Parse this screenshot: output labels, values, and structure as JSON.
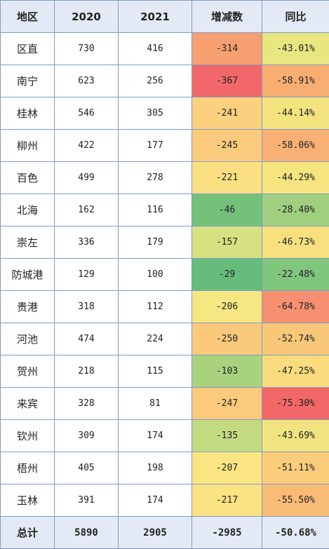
{
  "headers": {
    "region": "地区",
    "y2020": "2020",
    "y2021": "2021",
    "change": "增减数",
    "ratio": "同比"
  },
  "rows": [
    {
      "region": "区直",
      "y2020": "730",
      "y2021": "416",
      "change": "-314",
      "ratio": "-43.01%",
      "change_color": "#f6a071",
      "ratio_color": "#e8e67f"
    },
    {
      "region": "南宁",
      "y2020": "623",
      "y2021": "256",
      "change": "-367",
      "ratio": "-58.91%",
      "change_color": "#f2686a",
      "ratio_color": "#f8ad72"
    },
    {
      "region": "桂林",
      "y2020": "546",
      "y2021": "305",
      "change": "-241",
      "ratio": "-44.14%",
      "change_color": "#fbd07e",
      "ratio_color": "#f4e480"
    },
    {
      "region": "柳州",
      "y2020": "422",
      "y2021": "177",
      "change": "-245",
      "ratio": "-58.06%",
      "change_color": "#fbcb7d",
      "ratio_color": "#f8b074"
    },
    {
      "region": "百色",
      "y2020": "499",
      "y2021": "278",
      "change": "-221",
      "ratio": "-44.29%",
      "change_color": "#fbe083",
      "ratio_color": "#f6e47f"
    },
    {
      "region": "北海",
      "y2020": "162",
      "y2021": "116",
      "change": "-46",
      "ratio": "-28.40%",
      "change_color": "#74c27a",
      "ratio_color": "#9fcf7f"
    },
    {
      "region": "崇左",
      "y2020": "336",
      "y2021": "179",
      "change": "-157",
      "ratio": "-46.73%",
      "change_color": "#d6e182",
      "ratio_color": "#f8e07f"
    },
    {
      "region": "防城港",
      "y2020": "129",
      "y2021": "100",
      "change": "-29",
      "ratio": "-22.48%",
      "change_color": "#66bc7b",
      "ratio_color": "#80c67c"
    },
    {
      "region": "贵港",
      "y2020": "318",
      "y2021": "112",
      "change": "-206",
      "ratio": "-64.78%",
      "change_color": "#f7e782",
      "ratio_color": "#f69070"
    },
    {
      "region": "河池",
      "y2020": "474",
      "y2021": "224",
      "change": "-250",
      "ratio": "-52.74%",
      "change_color": "#fbc97c",
      "ratio_color": "#f9c778"
    },
    {
      "region": "贺州",
      "y2020": "218",
      "y2021": "115",
      "change": "-103",
      "ratio": "-47.25%",
      "change_color": "#a9d27e",
      "ratio_color": "#fadc7d"
    },
    {
      "region": "来宾",
      "y2020": "328",
      "y2021": "81",
      "change": "-247",
      "ratio": "-75.30%",
      "change_color": "#fbca7c",
      "ratio_color": "#f26869"
    },
    {
      "region": "钦州",
      "y2020": "309",
      "y2021": "174",
      "change": "-135",
      "ratio": "-43.69%",
      "change_color": "#c4da80",
      "ratio_color": "#f1e480"
    },
    {
      "region": "梧州",
      "y2020": "405",
      "y2021": "198",
      "change": "-207",
      "ratio": "-51.11%",
      "change_color": "#fae582",
      "ratio_color": "#fbcd7b"
    },
    {
      "region": "玉林",
      "y2020": "391",
      "y2021": "174",
      "change": "-217",
      "ratio": "-55.50%",
      "change_color": "#fbe282",
      "ratio_color": "#f9bc76"
    }
  ],
  "total": {
    "region": "总计",
    "y2020": "5890",
    "y2021": "2905",
    "change": "-2985",
    "ratio": "-50.68%"
  },
  "colors": {
    "header_bg": "#e3eaf5",
    "border": "#7f9cc7"
  }
}
